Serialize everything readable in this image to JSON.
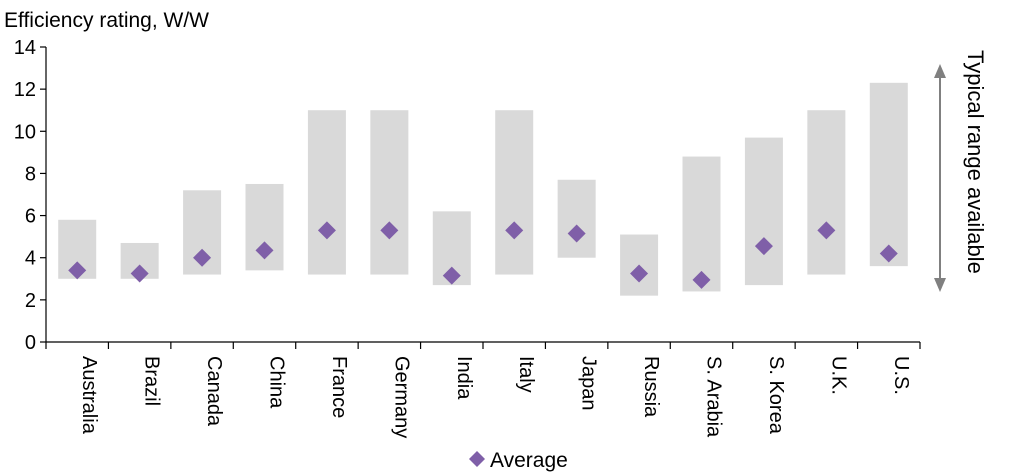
{
  "chart_data": {
    "type": "range-bar",
    "ylabel": "Efficiency rating, W/W",
    "ylim": [
      0,
      14
    ],
    "yticks": [
      "0",
      "2",
      "4",
      "6",
      "8",
      "10",
      "12",
      "14"
    ],
    "categories": [
      "Australia",
      "Brazil",
      "Canada",
      "China",
      "France",
      "Germany",
      "India",
      "Italy",
      "Japan",
      "Russia",
      "S. Arabia",
      "S. Korea",
      "U.K.",
      "U.S."
    ],
    "range_low": [
      3.0,
      3.0,
      3.2,
      3.4,
      3.2,
      3.2,
      2.7,
      3.2,
      4.0,
      2.2,
      2.4,
      2.7,
      3.2,
      3.6
    ],
    "range_high": [
      5.8,
      4.7,
      7.2,
      7.5,
      11.0,
      11.0,
      6.2,
      11.0,
      7.7,
      5.1,
      8.8,
      9.7,
      11.0,
      12.3
    ],
    "series": [
      {
        "name": "Average",
        "values": [
          3.4,
          3.25,
          4.0,
          4.35,
          5.3,
          5.3,
          3.15,
          5.3,
          5.15,
          3.25,
          2.95,
          4.55,
          5.3,
          4.2
        ]
      }
    ],
    "annotation": "Typical range available",
    "grid": false,
    "legend": "bottom",
    "colors": {
      "range_bar": "#d9d9d9",
      "marker": "#7f5fa8",
      "axis": "#000000",
      "arrow": "#808080"
    }
  }
}
